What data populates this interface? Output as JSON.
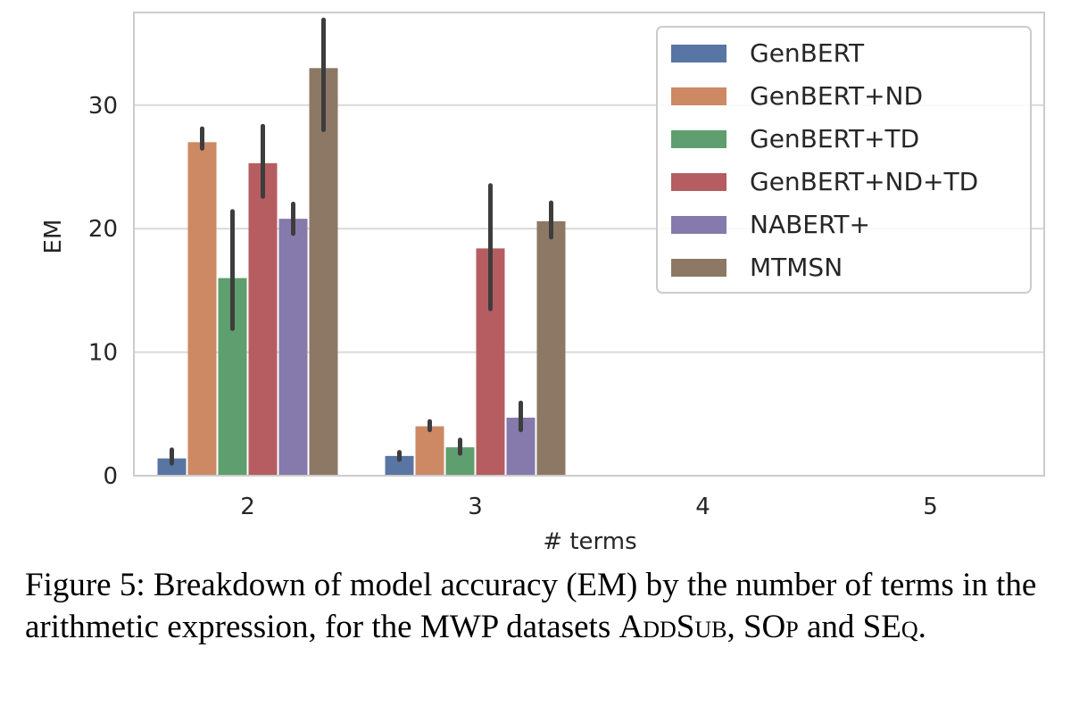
{
  "chart_data": {
    "type": "bar",
    "categories": [
      "2",
      "3",
      "4",
      "5"
    ],
    "xlabel": "# terms",
    "ylabel": "EM",
    "ylim": [
      0,
      37.5
    ],
    "yticks": [
      0,
      10,
      20,
      30
    ],
    "grid": true,
    "legend_position": "top-right",
    "series": [
      {
        "name": "GenBERT",
        "color": "#5875a4",
        "values": [
          1.4,
          1.6,
          0,
          0
        ],
        "err_low": [
          1.0,
          1.3,
          0,
          0
        ],
        "err_high": [
          2.1,
          1.9,
          0,
          0
        ]
      },
      {
        "name": "GenBERT+ND",
        "color": "#cc8963",
        "values": [
          27.0,
          4.0,
          0,
          0
        ],
        "err_low": [
          26.5,
          3.7,
          0,
          0
        ],
        "err_high": [
          28.1,
          4.4,
          0,
          0
        ]
      },
      {
        "name": "GenBERT+TD",
        "color": "#5f9e6e",
        "values": [
          16.0,
          2.3,
          0,
          0
        ],
        "err_low": [
          11.9,
          1.8,
          0,
          0
        ],
        "err_high": [
          21.4,
          2.9,
          0,
          0
        ]
      },
      {
        "name": "GenBERT+ND+TD",
        "color": "#b55d60",
        "values": [
          25.3,
          18.4,
          0,
          0
        ],
        "err_low": [
          22.6,
          13.5,
          0,
          0
        ],
        "err_high": [
          28.3,
          23.5,
          0,
          0
        ]
      },
      {
        "name": "NABERT+",
        "color": "#857aab",
        "values": [
          20.8,
          4.7,
          0,
          0
        ],
        "err_low": [
          19.6,
          3.7,
          0,
          0
        ],
        "err_high": [
          22.0,
          5.9,
          0,
          0
        ]
      },
      {
        "name": "MTMSN",
        "color": "#8d7866",
        "values": [
          33.0,
          20.6,
          0,
          0
        ],
        "err_low": [
          28.0,
          19.3,
          0,
          0
        ],
        "err_high": [
          36.9,
          22.1,
          0,
          0
        ]
      }
    ]
  },
  "caption": {
    "label": "Figure 5",
    "text_1": ": Breakdown of model accuracy (EM) by the number of terms in the arithmetic expression, for the MWP datasets ",
    "ds1": "AddSub",
    "sep1": ", ",
    "ds2": "SOp",
    "sep2": " and ",
    "ds3": "SEq",
    "end": "."
  }
}
